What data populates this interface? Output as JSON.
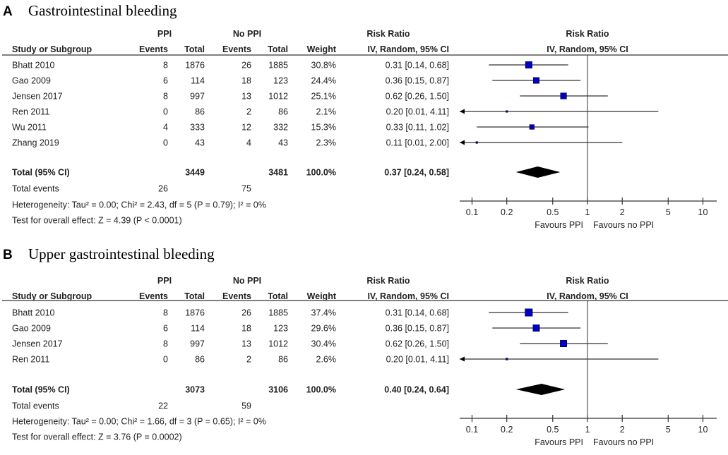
{
  "colors": {
    "marker": "#0000c0",
    "diamond": "#000000",
    "line": "#333333"
  },
  "headers": {
    "group1": "PPI",
    "group2": "No PPI",
    "study": "Study or Subgroup",
    "events": "Events",
    "total": "Total",
    "weight": "Weight",
    "rr": "Risk Ratio",
    "rr_method": "IV, Random, 95% CI"
  },
  "chart_data": [
    {
      "type": "forest",
      "letter": "A",
      "title": "Gastrointestinal bleeding",
      "x_scale": "log",
      "xlim": [
        0.08,
        13
      ],
      "xticks": [
        "0.1",
        "0.2",
        "0.5",
        "1",
        "2",
        "5",
        "10"
      ],
      "xlabel_left": "Favours PPI",
      "xlabel_right": "Favours no PPI",
      "studies": [
        {
          "name": "Bhatt 2010",
          "e1": "8",
          "t1": "1876",
          "e2": "26",
          "t2": "1885",
          "weight": "30.8%",
          "rr_text": "0.31 [0.14, 0.68]",
          "rr": 0.31,
          "lo": 0.14,
          "hi": 0.68,
          "w": 30.8
        },
        {
          "name": "Gao 2009",
          "e1": "6",
          "t1": "114",
          "e2": "18",
          "t2": "123",
          "weight": "24.4%",
          "rr_text": "0.36 [0.15, 0.87]",
          "rr": 0.36,
          "lo": 0.15,
          "hi": 0.87,
          "w": 24.4
        },
        {
          "name": "Jensen 2017",
          "e1": "8",
          "t1": "997",
          "e2": "13",
          "t2": "1012",
          "weight": "25.1%",
          "rr_text": "0.62 [0.26, 1.50]",
          "rr": 0.62,
          "lo": 0.26,
          "hi": 1.5,
          "w": 25.1
        },
        {
          "name": "Ren 2011",
          "e1": "0",
          "t1": "86",
          "e2": "2",
          "t2": "86",
          "weight": "2.1%",
          "rr_text": "0.20 [0.01, 4.11]",
          "rr": 0.2,
          "lo": 0.01,
          "hi": 4.11,
          "w": 2.1
        },
        {
          "name": "Wu 2011",
          "e1": "4",
          "t1": "333",
          "e2": "12",
          "t2": "332",
          "weight": "15.3%",
          "rr_text": "0.33 [0.11, 1.02]",
          "rr": 0.33,
          "lo": 0.11,
          "hi": 1.02,
          "w": 15.3
        },
        {
          "name": "Zhang 2019",
          "e1": "0",
          "t1": "43",
          "e2": "4",
          "t2": "43",
          "weight": "2.3%",
          "rr_text": "0.11 [0.01, 2.00]",
          "rr": 0.11,
          "lo": 0.01,
          "hi": 2.0,
          "w": 2.3
        }
      ],
      "total": {
        "label": "Total (95% CI)",
        "t1": "3449",
        "t2": "3481",
        "weight": "100.0%",
        "rr_text": "0.37 [0.24, 0.58]",
        "rr": 0.37,
        "lo": 0.24,
        "hi": 0.58
      },
      "total_events": {
        "label": "Total events",
        "e1": "26",
        "e2": "75"
      },
      "heterogeneity": "Heterogeneity: Tau² = 0.00; Chi² = 2.43, df = 5 (P = 0.79); I² = 0%",
      "overall_effect": "Test for overall effect: Z = 4.39 (P < 0.0001)"
    },
    {
      "type": "forest",
      "letter": "B",
      "title": "Upper gastrointestinal bleeding",
      "x_scale": "log",
      "xlim": [
        0.08,
        13
      ],
      "xticks": [
        "0.1",
        "0.2",
        "0.5",
        "1",
        "2",
        "5",
        "10"
      ],
      "xlabel_left": "Favours PPI",
      "xlabel_right": "Favours no PPI",
      "studies": [
        {
          "name": "Bhatt 2010",
          "e1": "8",
          "t1": "1876",
          "e2": "26",
          "t2": "1885",
          "weight": "37.4%",
          "rr_text": "0.31 [0.14, 0.68]",
          "rr": 0.31,
          "lo": 0.14,
          "hi": 0.68,
          "w": 37.4
        },
        {
          "name": "Gao 2009",
          "e1": "6",
          "t1": "114",
          "e2": "18",
          "t2": "123",
          "weight": "29.6%",
          "rr_text": "0.36 [0.15, 0.87]",
          "rr": 0.36,
          "lo": 0.15,
          "hi": 0.87,
          "w": 29.6
        },
        {
          "name": "Jensen 2017",
          "e1": "8",
          "t1": "997",
          "e2": "13",
          "t2": "1012",
          "weight": "30.4%",
          "rr_text": "0.62 [0.26, 1.50]",
          "rr": 0.62,
          "lo": 0.26,
          "hi": 1.5,
          "w": 30.4
        },
        {
          "name": "Ren 2011",
          "e1": "0",
          "t1": "86",
          "e2": "2",
          "t2": "86",
          "weight": "2.6%",
          "rr_text": "0.20 [0.01, 4.11]",
          "rr": 0.2,
          "lo": 0.01,
          "hi": 4.11,
          "w": 2.6
        }
      ],
      "total": {
        "label": "Total (95% CI)",
        "t1": "3073",
        "t2": "3106",
        "weight": "100.0%",
        "rr_text": "0.40 [0.24, 0.64]",
        "rr": 0.4,
        "lo": 0.24,
        "hi": 0.64
      },
      "total_events": {
        "label": "Total events",
        "e1": "22",
        "e2": "59"
      },
      "heterogeneity": "Heterogeneity: Tau² = 0.00; Chi² = 1.66, df = 3 (P = 0.65); I² = 0%",
      "overall_effect": "Test for overall effect: Z = 3.76 (P = 0.0002)"
    }
  ]
}
